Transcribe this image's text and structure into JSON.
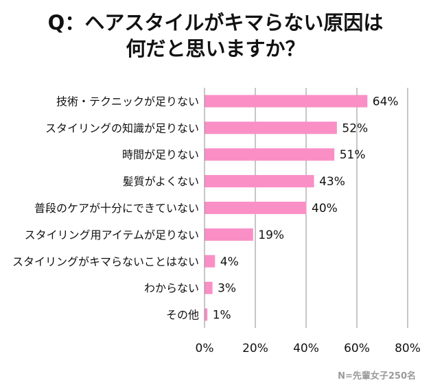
{
  "chart_data": {
    "type": "bar",
    "orientation": "horizontal",
    "title_line1": "Q：ヘアスタイルがキマらない原因は",
    "title_line2": "何だと思いますか？",
    "categories": [
      "技術・テクニックが足りない",
      "スタイリングの知識が足りない",
      "時間が足りない",
      "髪質がよくない",
      "普段のケアが十分にできていない",
      "スタイリング用アイテムが足りない",
      "スタイリングがキマらないことはない",
      "わからない",
      "その他"
    ],
    "values": [
      64,
      52,
      51,
      43,
      40,
      19,
      4,
      3,
      1
    ],
    "value_labels": [
      "64%",
      "52%",
      "51%",
      "43%",
      "40%",
      "19%",
      "4%",
      "3%",
      "1%"
    ],
    "xlim": [
      0,
      80
    ],
    "xticks": [
      0,
      20,
      40,
      60,
      80
    ],
    "xtick_labels": [
      "0%",
      "20%",
      "40%",
      "60%",
      "80%"
    ],
    "grid": true,
    "bar_color": "#fa8fc6",
    "note": "N=先輩女子250名"
  }
}
